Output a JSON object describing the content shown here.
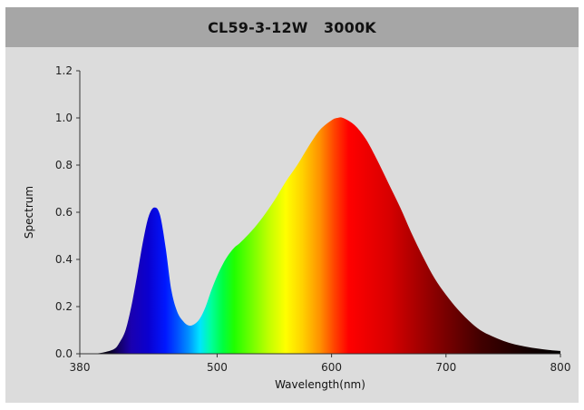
{
  "chart_data": {
    "type": "area",
    "title": "CL59-3-12W   3000K",
    "xlabel": "Wavelength(nm)",
    "ylabel": "Spectrum",
    "xlim": [
      380,
      800
    ],
    "ylim": [
      0,
      1.2
    ],
    "xticks": [
      380,
      500,
      600,
      700,
      800
    ],
    "yticks": [
      0.0,
      0.2,
      0.4,
      0.6,
      0.8,
      1.0,
      1.2
    ],
    "grid": false,
    "legend": "none",
    "fill": "visible-spectrum gradient",
    "x": [
      380,
      390,
      400,
      410,
      415,
      420,
      425,
      430,
      435,
      440,
      445,
      450,
      455,
      460,
      465,
      470,
      475,
      480,
      485,
      490,
      495,
      500,
      505,
      510,
      515,
      520,
      530,
      540,
      550,
      560,
      570,
      580,
      590,
      600,
      605,
      610,
      620,
      630,
      640,
      650,
      660,
      670,
      680,
      690,
      700,
      710,
      720,
      730,
      740,
      750,
      760,
      770,
      780,
      790,
      800
    ],
    "values": [
      0.0,
      0.0,
      0.005,
      0.02,
      0.05,
      0.1,
      0.2,
      0.33,
      0.47,
      0.58,
      0.62,
      0.59,
      0.45,
      0.27,
      0.18,
      0.14,
      0.12,
      0.125,
      0.15,
      0.2,
      0.27,
      0.33,
      0.38,
      0.42,
      0.45,
      0.47,
      0.52,
      0.58,
      0.65,
      0.73,
      0.8,
      0.88,
      0.95,
      0.99,
      1.0,
      1.0,
      0.97,
      0.91,
      0.82,
      0.72,
      0.62,
      0.51,
      0.41,
      0.32,
      0.25,
      0.19,
      0.14,
      0.1,
      0.075,
      0.055,
      0.04,
      0.03,
      0.022,
      0.016,
      0.012
    ]
  }
}
